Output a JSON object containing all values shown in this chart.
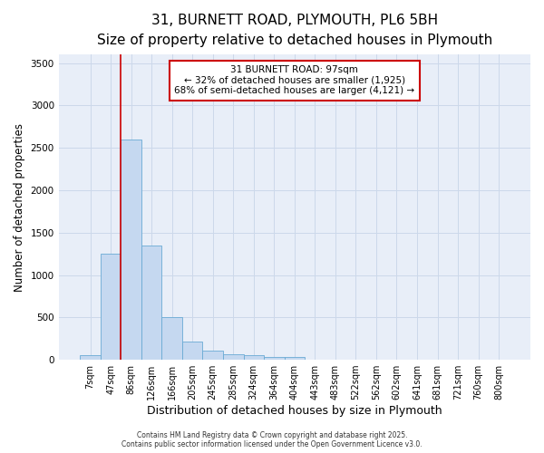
{
  "title_line1": "31, BURNETT ROAD, PLYMOUTH, PL6 5BH",
  "title_line2": "Size of property relative to detached houses in Plymouth",
  "xlabel": "Distribution of detached houses by size in Plymouth",
  "ylabel": "Number of detached properties",
  "categories": [
    "7sqm",
    "47sqm",
    "86sqm",
    "126sqm",
    "166sqm",
    "205sqm",
    "245sqm",
    "285sqm",
    "324sqm",
    "364sqm",
    "404sqm",
    "443sqm",
    "483sqm",
    "522sqm",
    "562sqm",
    "602sqm",
    "641sqm",
    "681sqm",
    "721sqm",
    "760sqm",
    "800sqm"
  ],
  "bar_values": [
    50,
    1250,
    2600,
    1350,
    500,
    210,
    110,
    60,
    50,
    30,
    30,
    0,
    0,
    0,
    0,
    0,
    0,
    0,
    0,
    0,
    0
  ],
  "bar_color": "#c5d8f0",
  "bar_edge_color": "#6aaad4",
  "grid_color": "#ccd8ea",
  "background_color": "#e8eef8",
  "red_line_x": 1.5,
  "ylim": [
    0,
    3600
  ],
  "yticks": [
    0,
    500,
    1000,
    1500,
    2000,
    2500,
    3000,
    3500
  ],
  "annotation_text": "31 BURNETT ROAD: 97sqm\n← 32% of detached houses are smaller (1,925)\n68% of semi-detached houses are larger (4,121) →",
  "annotation_box_color": "#ffffff",
  "annotation_edge_color": "#cc0000",
  "footer_text": "Contains HM Land Registry data © Crown copyright and database right 2025.\nContains public sector information licensed under the Open Government Licence v3.0.",
  "title_fontsize": 11,
  "subtitle_fontsize": 9.5,
  "tick_fontsize": 7,
  "ylabel_fontsize": 8.5,
  "xlabel_fontsize": 9
}
